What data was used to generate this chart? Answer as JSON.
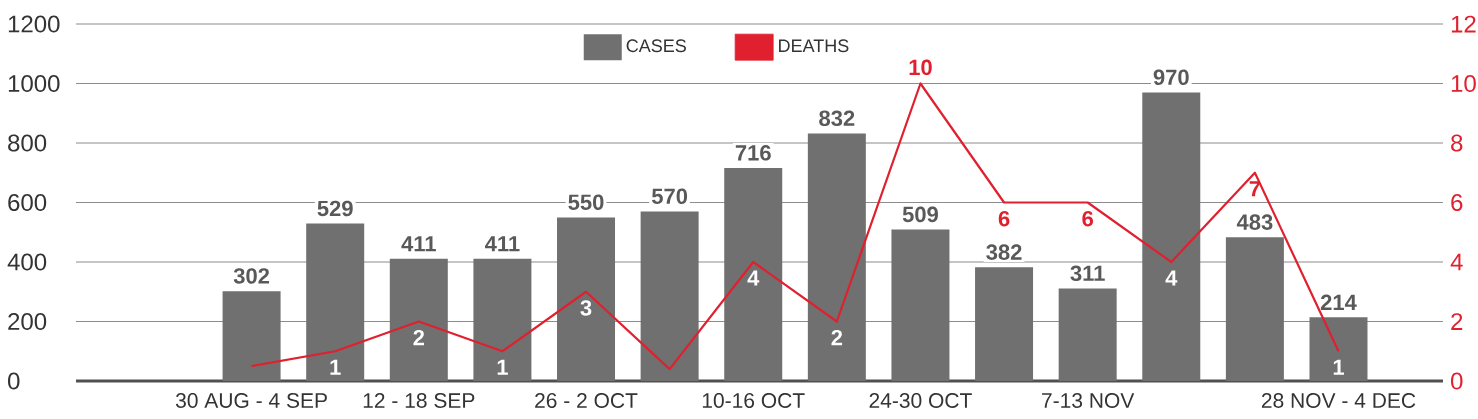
{
  "chart_data": {
    "type": "bar",
    "categories": [
      "30 AUG - 4 SEP",
      null,
      "12 - 18 SEP",
      null,
      "26 - 2 OCT",
      null,
      "10-16 OCT",
      null,
      "24-30 OCT",
      null,
      "7-13 NOV",
      null,
      null,
      "28 NOV - 4 DEC"
    ],
    "series": [
      {
        "name": "CASES",
        "color": "#707070",
        "values": [
          302,
          529,
          411,
          411,
          550,
          570,
          716,
          832,
          509,
          382,
          311,
          970,
          483,
          214
        ],
        "value_labels": [
          "302",
          "529",
          "411",
          "411",
          "550",
          "570",
          "716",
          "832",
          "509",
          "382",
          "311",
          "970",
          "483",
          "214"
        ]
      },
      {
        "name": "DEATHS",
        "type": "line",
        "axis": "y2",
        "color": "#e0202e",
        "values": [
          0.5,
          1,
          2,
          1,
          3,
          0.4,
          4,
          2,
          10,
          6,
          6,
          4,
          7,
          1
        ],
        "value_labels": [
          null,
          "1",
          "2",
          "1",
          "3",
          null,
          "4",
          "2",
          "10",
          "6",
          "6",
          "4",
          "7",
          "1"
        ]
      }
    ],
    "ylim": [
      0,
      1200
    ],
    "yticks": [
      0,
      200,
      400,
      600,
      800,
      1000,
      1200
    ],
    "y2lim": [
      0,
      12
    ],
    "y2ticks": [
      0,
      2,
      4,
      6,
      8,
      10,
      12
    ],
    "grid": "y",
    "legend": "top"
  }
}
